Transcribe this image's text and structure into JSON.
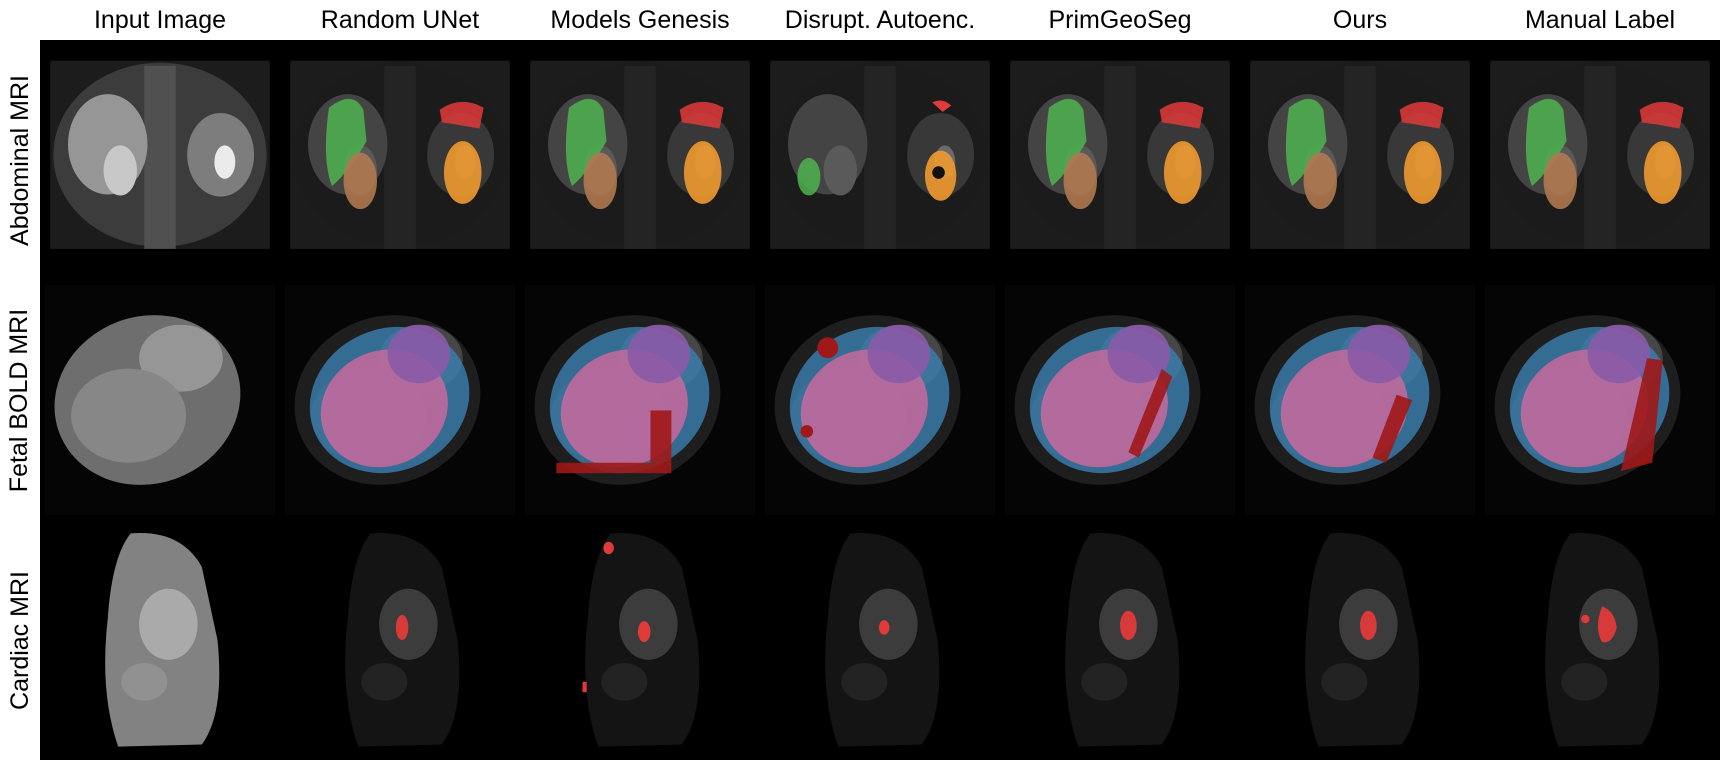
{
  "columns": [
    "Input Image",
    "Random UNet",
    "Models Genesis",
    "Disrupt. Autoenc.",
    "PrimGeoSeg",
    "Ours",
    "Manual Label"
  ],
  "rows": [
    "Abdominal MRI",
    "Fetal BOLD MRI",
    "Cardiac MRI"
  ],
  "colors": {
    "background": "#000000",
    "green": "#4fb34f",
    "brown": "#b07850",
    "orange": "#f09a30",
    "red": "#e03a3a",
    "blue": "#3a7fb0",
    "pink": "#c86a9c",
    "purple": "#8a5aa8",
    "dark_red": "#a01818"
  }
}
